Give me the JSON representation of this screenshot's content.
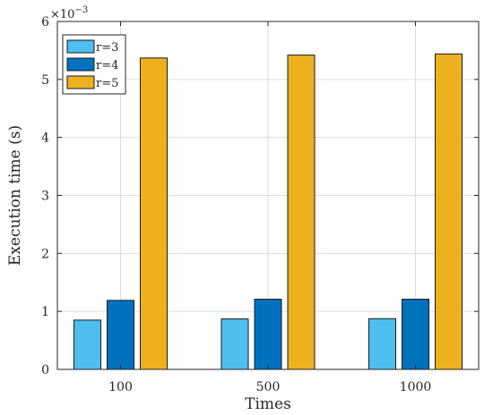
{
  "chart_data": {
    "type": "bar",
    "categories": [
      "100",
      "500",
      "1000"
    ],
    "series": [
      {
        "name": "r=3",
        "color": "#4DBEEE",
        "values": [
          0.85,
          0.87,
          0.875
        ]
      },
      {
        "name": "r=4",
        "color": "#0072BD",
        "values": [
          1.19,
          1.21,
          1.21
        ]
      },
      {
        "name": "r=5",
        "color": "#EDB120",
        "values": [
          5.37,
          5.42,
          5.44
        ]
      }
    ],
    "xlabel": "Times",
    "ylabel": "Execution time (s)",
    "ylim": [
      0,
      6
    ],
    "yticks": [
      0,
      1,
      2,
      3,
      4,
      5,
      6
    ],
    "y_multiplier": {
      "base": "×10",
      "exponent": "−3"
    },
    "grid": true,
    "legend_position": "top-left"
  }
}
